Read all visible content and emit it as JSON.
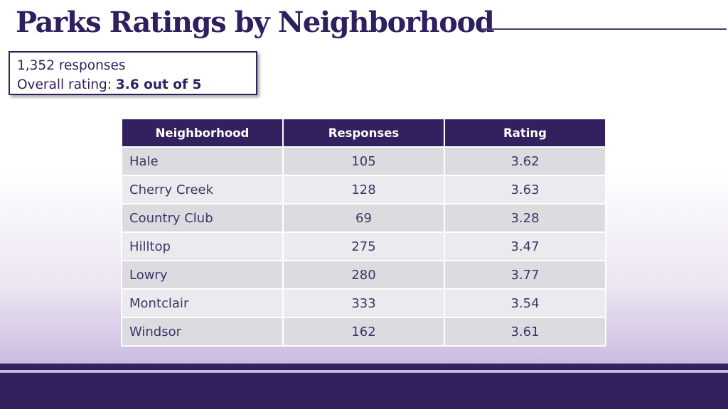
{
  "title": "Parks Ratings by Neighborhood",
  "summary": {
    "responses": "1,352 responses",
    "rating_label": "Overall rating: ",
    "rating_value": "3.6 out of 5"
  },
  "colors": {
    "primary": "#33205f",
    "title": "#2e1f5e",
    "row_odd": "#dcdbe0",
    "row_even": "#ebeaee"
  },
  "chart_data": {
    "type": "table",
    "columns": [
      "Neighborhood",
      "Responses",
      "Rating"
    ],
    "rows": [
      {
        "neighborhood": "Hale",
        "responses": 105,
        "rating": 3.62
      },
      {
        "neighborhood": "Cherry Creek",
        "responses": 128,
        "rating": 3.63
      },
      {
        "neighborhood": "Country Club",
        "responses": 69,
        "rating": 3.28
      },
      {
        "neighborhood": "Hilltop",
        "responses": 275,
        "rating": 3.47
      },
      {
        "neighborhood": "Lowry",
        "responses": 280,
        "rating": 3.77
      },
      {
        "neighborhood": "Montclair",
        "responses": 333,
        "rating": 3.54
      },
      {
        "neighborhood": "Windsor",
        "responses": 162,
        "rating": 3.61
      }
    ]
  }
}
